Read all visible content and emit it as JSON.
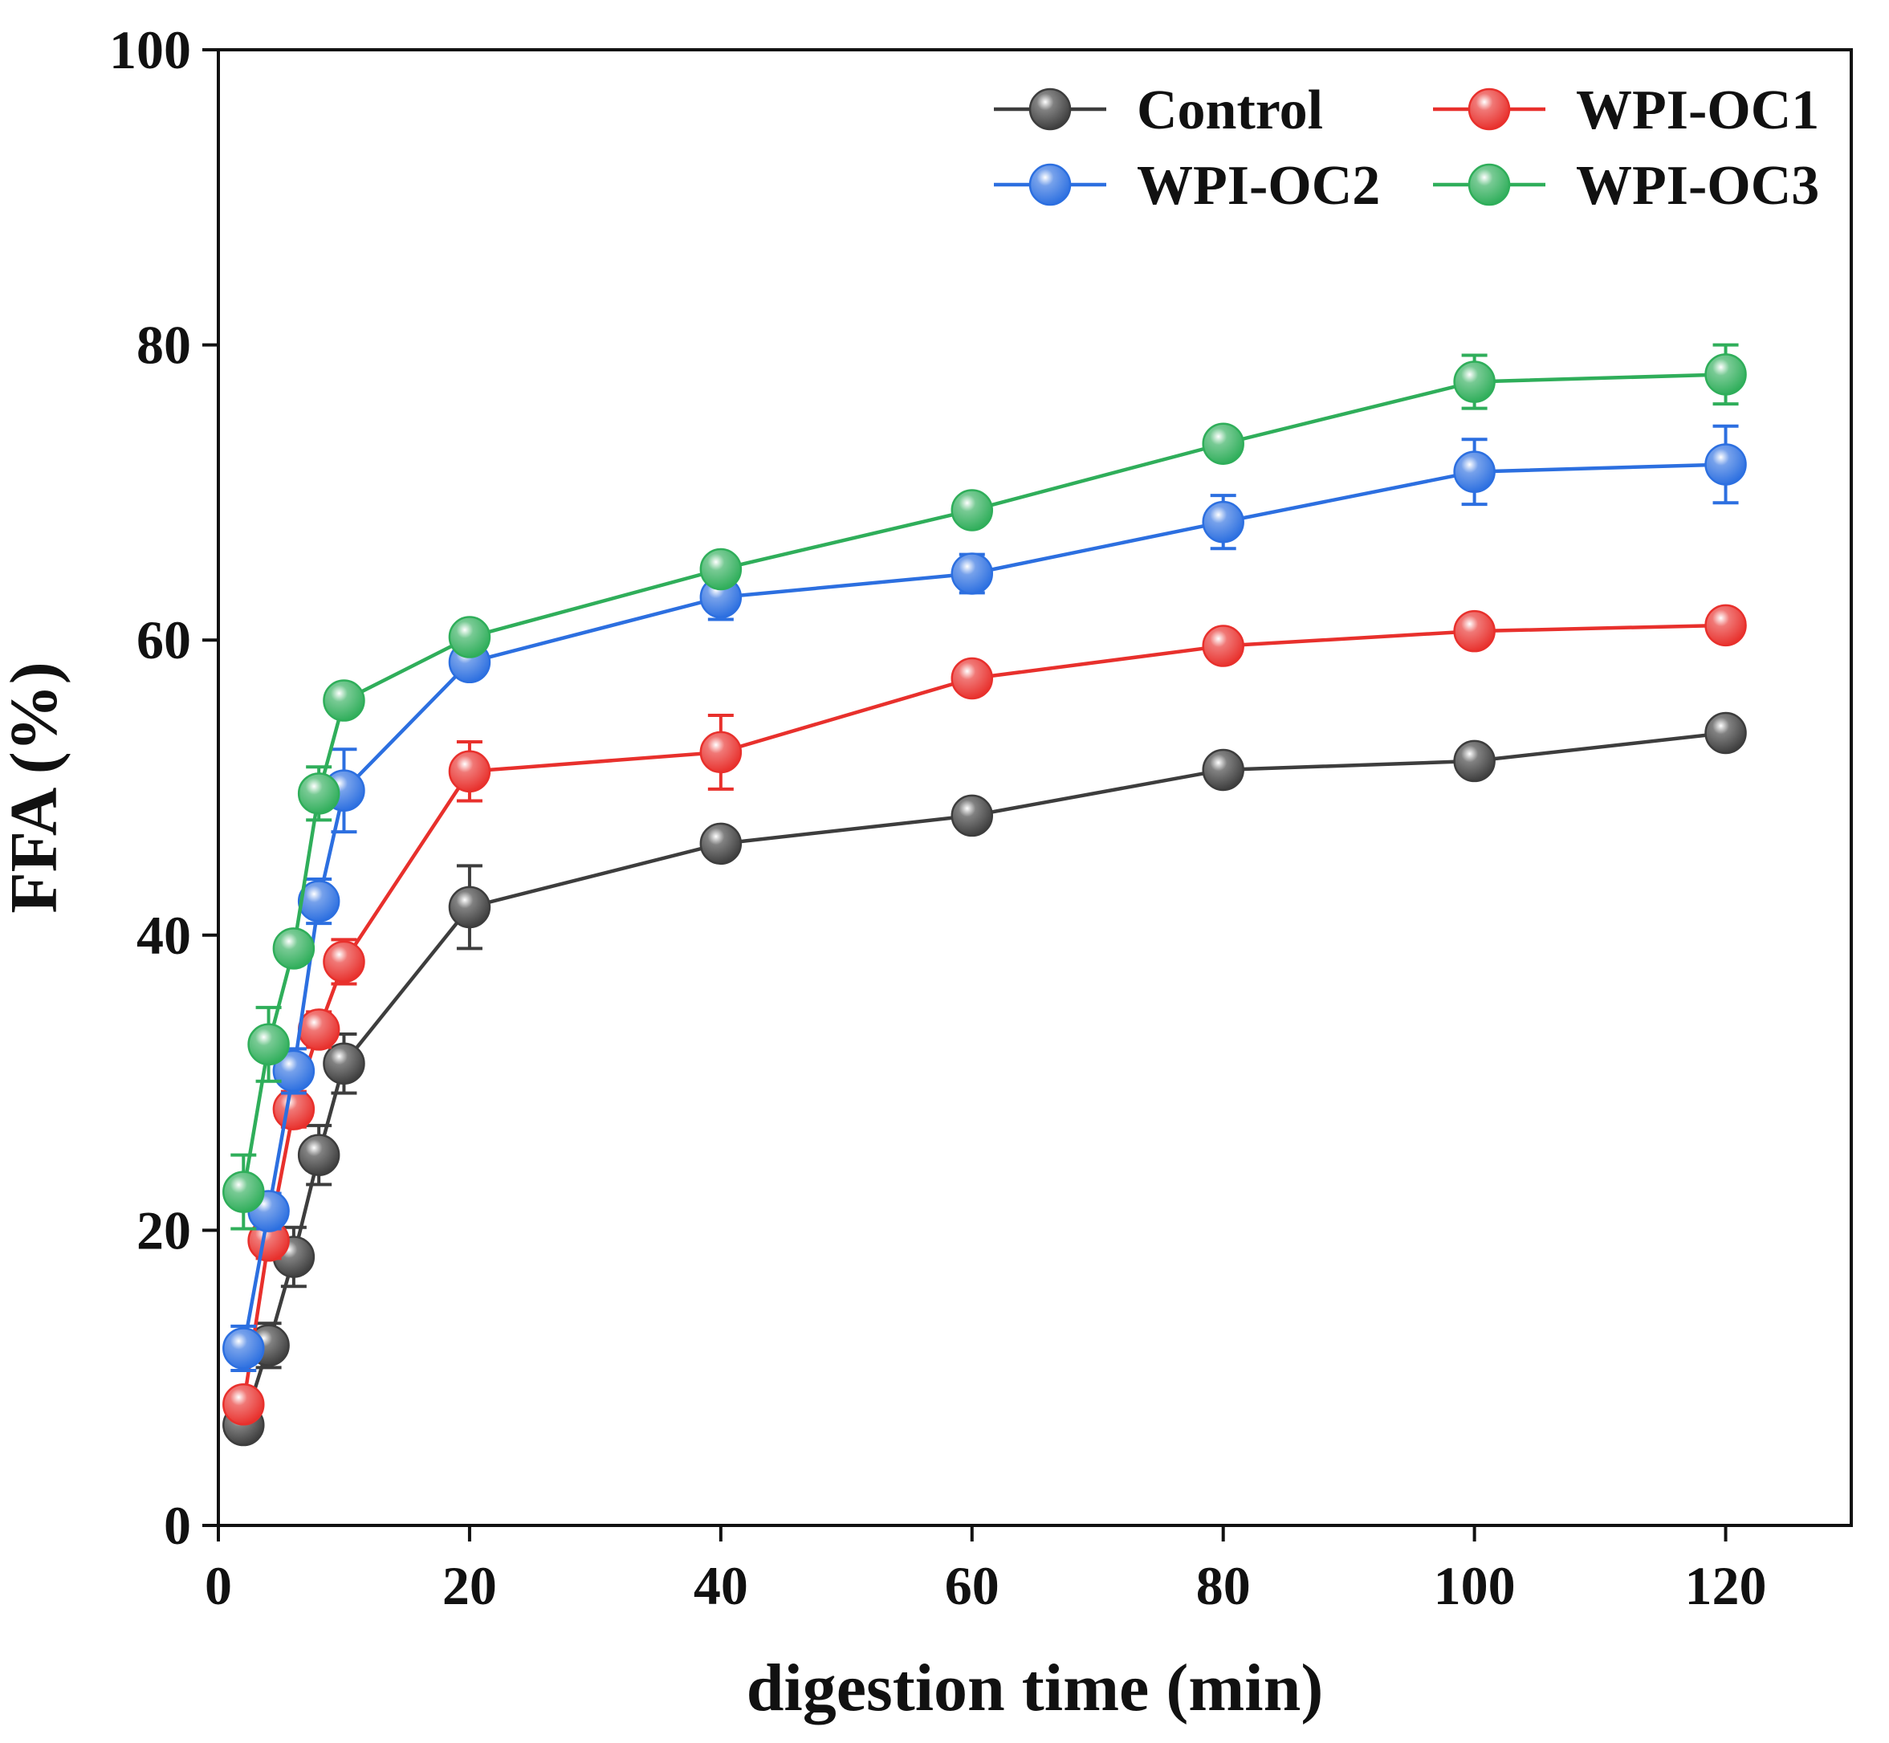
{
  "chart_data": {
    "type": "line",
    "title": "",
    "xlabel": "digestion time (min)",
    "ylabel": "FFA (%)",
    "xlim": [
      0,
      130
    ],
    "ylim": [
      0,
      100
    ],
    "xticks": [
      0,
      20,
      40,
      60,
      80,
      100,
      120
    ],
    "yticks": [
      0,
      20,
      40,
      60,
      80,
      100
    ],
    "grid": false,
    "legend_position": "top-right",
    "x": [
      2,
      4,
      6,
      8,
      10,
      20,
      40,
      60,
      80,
      100,
      120
    ],
    "series": [
      {
        "name": "Control",
        "color": "#3d3d3d",
        "values": [
          6.8,
          12.2,
          18.2,
          25.1,
          31.3,
          41.9,
          46.2,
          48.1,
          51.2,
          51.8,
          53.7
        ],
        "errors": [
          0.8,
          1.5,
          2.0,
          2.0,
          2.0,
          2.8,
          1.0,
          1.0,
          0.8,
          0.8,
          0.8
        ]
      },
      {
        "name": "WPI-OC1",
        "color": "#e8302c",
        "values": [
          8.2,
          19.3,
          28.2,
          33.6,
          38.2,
          51.1,
          52.4,
          57.4,
          59.6,
          60.6,
          61.0
        ],
        "errors": [
          0.8,
          1.2,
          1.2,
          1.2,
          1.5,
          2.0,
          2.5,
          1.0,
          0.8,
          0.8,
          0.8
        ]
      },
      {
        "name": "WPI-OC2",
        "color": "#2c6fe0",
        "values": [
          12.0,
          21.3,
          30.8,
          42.3,
          49.8,
          58.5,
          62.9,
          64.5,
          68.0,
          71.4,
          71.9
        ],
        "errors": [
          1.5,
          1.2,
          1.5,
          1.5,
          2.8,
          1.0,
          1.5,
          1.3,
          1.8,
          2.2,
          2.6
        ]
      },
      {
        "name": "WPI-OC3",
        "color": "#2fae5a",
        "values": [
          22.6,
          32.6,
          39.1,
          49.6,
          55.9,
          60.2,
          64.8,
          68.8,
          73.3,
          77.5,
          78.0
        ],
        "errors": [
          2.5,
          2.5,
          1.0,
          1.8,
          0.8,
          0.8,
          0.8,
          0.8,
          0.8,
          1.8,
          2.0
        ]
      }
    ]
  }
}
